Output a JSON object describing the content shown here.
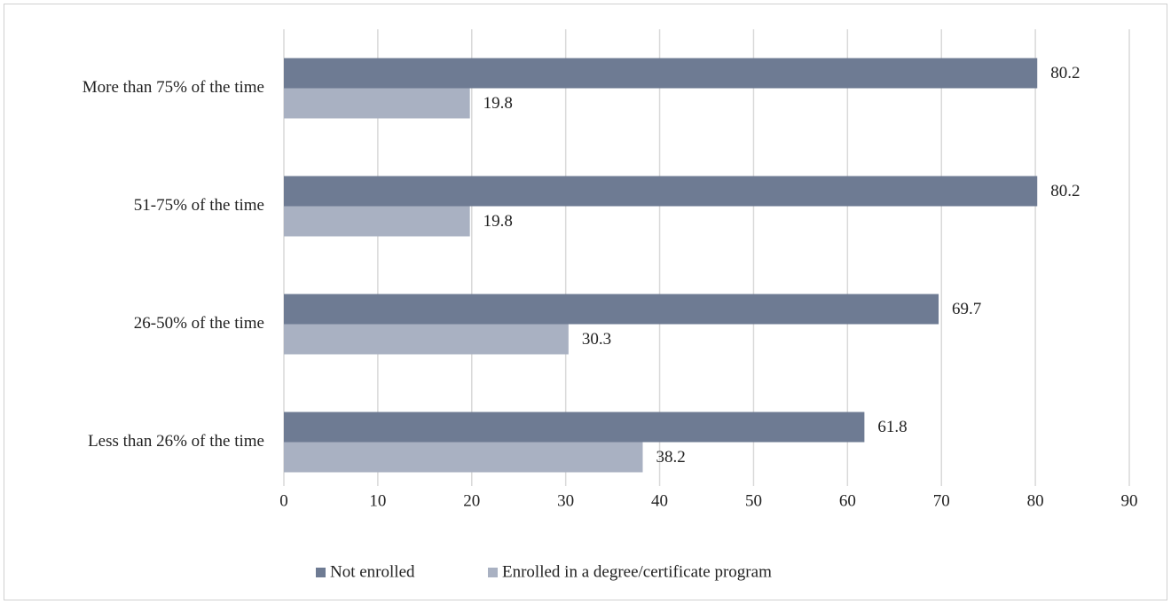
{
  "chart_data": {
    "type": "bar",
    "orientation": "horizontal",
    "categories": [
      "More than 75% of the time",
      "51-75% of the time",
      "26-50% of the time",
      "Less than 26% of the time"
    ],
    "series": [
      {
        "name": "Not enrolled",
        "color": "#6e7b93",
        "values": [
          80.2,
          80.2,
          69.7,
          61.8
        ]
      },
      {
        "name": "Enrolled in a degree/certificate program",
        "color": "#a9b1c2",
        "values": [
          19.8,
          19.8,
          30.3,
          38.2
        ]
      }
    ],
    "xlim": [
      0,
      90
    ],
    "xticks": [
      0,
      10,
      20,
      30,
      40,
      50,
      60,
      70,
      80,
      90
    ],
    "grid": true,
    "legend": "bottom"
  }
}
